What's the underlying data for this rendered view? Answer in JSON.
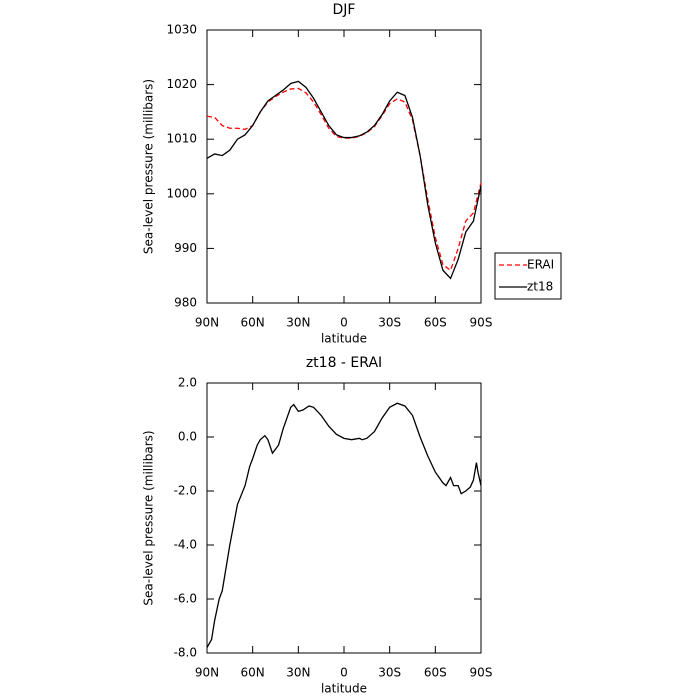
{
  "chart_data": [
    {
      "type": "line",
      "title": "DJF",
      "xlabel": "latitude",
      "ylabel": "Sea-level pressure (millibars)",
      "x": [
        90,
        85,
        80,
        75,
        70,
        65,
        60,
        55,
        50,
        45,
        40,
        35,
        30,
        25,
        20,
        15,
        10,
        5,
        0,
        -5,
        -10,
        -15,
        -20,
        -25,
        -30,
        -35,
        -40,
        -45,
        -50,
        -55,
        -60,
        -65,
        -70,
        -75,
        -80,
        -85,
        -90
      ],
      "series": [
        {
          "name": "ERAI",
          "color": "#ff0000",
          "style": "dashed",
          "values": [
            1014.2,
            1014,
            1012.5,
            1012,
            1012,
            1011.8,
            1012.5,
            1015,
            1016.8,
            1017.8,
            1018.6,
            1019.2,
            1019.3,
            1018.5,
            1016.8,
            1014.5,
            1012,
            1010.5,
            1010.2,
            1010.2,
            1010.5,
            1011.2,
            1012.3,
            1014.3,
            1016.5,
            1017.4,
            1016.8,
            1013.5,
            1007,
            999,
            992,
            987,
            986,
            990,
            995,
            996.5,
            1002
          ]
        },
        {
          "name": "zt18",
          "color": "#000000",
          "style": "solid",
          "values": [
            1006.5,
            1007.3,
            1007,
            1008,
            1010,
            1010.8,
            1012.5,
            1015,
            1017,
            1018,
            1019,
            1020.2,
            1020.6,
            1019.5,
            1017.5,
            1015,
            1012.5,
            1010.8,
            1010.3,
            1010.3,
            1010.6,
            1011.3,
            1012.5,
            1014.5,
            1017,
            1018.6,
            1018,
            1014,
            1007,
            998,
            991,
            986,
            984.5,
            988,
            993,
            995,
            1001.5
          ]
        }
      ],
      "xlim": [
        90,
        -90
      ],
      "xticks": [
        {
          "value": 90,
          "label": "90N"
        },
        {
          "value": 60,
          "label": "60N"
        },
        {
          "value": 30,
          "label": "30N"
        },
        0,
        {
          "value": -30,
          "label": "30S"
        },
        {
          "value": -60,
          "label": "60S"
        },
        {
          "value": -90,
          "label": "90S"
        }
      ],
      "ylim": [
        980,
        1030
      ],
      "yticks": [
        980,
        990,
        1000,
        1010,
        1020,
        1030
      ],
      "legend": "right"
    },
    {
      "type": "line",
      "title": "zt18 - ERAI",
      "xlabel": "latitude",
      "ylabel": "Sea-level pressure (millibars)",
      "x": [
        90,
        87,
        85,
        82,
        80,
        75,
        70,
        65,
        62,
        60,
        57,
        55,
        52,
        50,
        47,
        43,
        40,
        35,
        33,
        30,
        27,
        23,
        20,
        15,
        10,
        5,
        0,
        -5,
        -10,
        -12,
        -15,
        -20,
        -25,
        -30,
        -35,
        -40,
        -45,
        -50,
        -55,
        -60,
        -65,
        -67,
        -70,
        -72,
        -75,
        -77,
        -80,
        -83,
        -85,
        -87,
        -88,
        -90
      ],
      "series": [
        {
          "color": "#000000",
          "style": "solid",
          "values": [
            -7.8,
            -7.5,
            -6.8,
            -6.0,
            -5.7,
            -4.0,
            -2.5,
            -1.8,
            -1.1,
            -0.8,
            -0.3,
            -0.1,
            0.05,
            -0.1,
            -0.6,
            -0.3,
            0.3,
            1.1,
            1.2,
            0.95,
            1.0,
            1.15,
            1.1,
            0.8,
            0.4,
            0.1,
            -0.05,
            -0.1,
            -0.05,
            -0.1,
            -0.05,
            0.2,
            0.7,
            1.1,
            1.25,
            1.15,
            0.8,
            0.0,
            -0.7,
            -1.3,
            -1.7,
            -1.8,
            -1.5,
            -1.8,
            -1.8,
            -2.1,
            -2.0,
            -1.85,
            -1.6,
            -0.95,
            -1.3,
            -1.8
          ]
        }
      ],
      "xlim": [
        90,
        -90
      ],
      "xticks": [
        {
          "value": 90,
          "label": "90N"
        },
        {
          "value": 60,
          "label": "60N"
        },
        {
          "value": 30,
          "label": "30N"
        },
        0,
        {
          "value": -30,
          "label": "30S"
        },
        {
          "value": -60,
          "label": "60S"
        },
        {
          "value": -90,
          "label": "90S"
        }
      ],
      "ylim": [
        -8,
        2
      ],
      "yticks": [
        {
          "value": -8,
          "label": "-8.0"
        },
        {
          "value": -6,
          "label": "-6.0"
        },
        {
          "value": -4,
          "label": "-4.0"
        },
        {
          "value": -2,
          "label": "-2.0"
        },
        {
          "value": 0,
          "label": "0.0"
        },
        {
          "value": 2,
          "label": "2.0"
        }
      ]
    }
  ]
}
